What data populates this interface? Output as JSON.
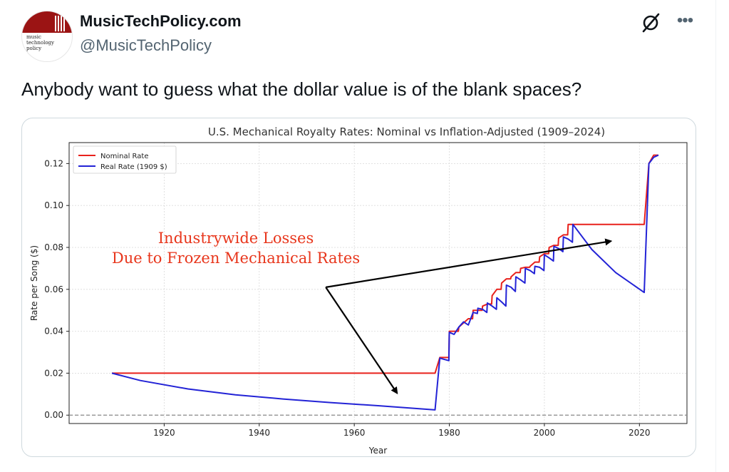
{
  "author": {
    "display_name": "MusicTechPolicy.com",
    "handle": "@MusicTechPolicy",
    "avatar_text": "music\ntechnology\npolicy"
  },
  "icons": {
    "grok": "grok-icon",
    "more": "more-icon"
  },
  "tweet": {
    "text": "Anybody want to guess what the dollar value is of the blank spaces?"
  },
  "chart_data": {
    "type": "line",
    "title": "U.S. Mechanical Royalty Rates: Nominal vs Inflation-Adjusted (1909–2024)",
    "xlabel": "Year",
    "ylabel": "Rate per Song ($)",
    "xlim": [
      1900,
      2030
    ],
    "ylim": [
      -0.004,
      0.13
    ],
    "xticks": [
      1920,
      1940,
      1960,
      1980,
      2000,
      2020
    ],
    "yticks": [
      0.0,
      0.02,
      0.04,
      0.06,
      0.08,
      0.1,
      0.12
    ],
    "ytick_labels": [
      "0.00",
      "0.02",
      "0.04",
      "0.06",
      "0.08",
      "0.10",
      "0.12"
    ],
    "grid": true,
    "legend_position": "top-left",
    "reference_line": {
      "y": 0,
      "style": "dashed",
      "color": "#888888"
    },
    "series": [
      {
        "name": "Nominal Rate",
        "color": "#e8211c",
        "x": [
          1909,
          1977,
          1978,
          1979.9,
          1980,
          1981,
          1981.9,
          1982,
          1983,
          1984,
          1984.9,
          1985,
          1986,
          1986.9,
          1987,
          1988,
          1988.9,
          1989,
          1990,
          1990.9,
          1991,
          1992,
          1992.9,
          1993,
          1994,
          1994.9,
          1995,
          1996,
          1996.9,
          1997,
          1998,
          1998.9,
          1999,
          2000,
          2000.9,
          2001,
          2002,
          2002.9,
          2003,
          2004,
          2004.9,
          2005,
          2006,
          2021,
          2022,
          2023,
          2024
        ],
        "y": [
          0.02,
          0.02,
          0.0275,
          0.0275,
          0.04,
          0.04,
          0.04,
          0.042,
          0.044,
          0.046,
          0.046,
          0.05,
          0.05,
          0.05,
          0.052,
          0.053,
          0.053,
          0.057,
          0.06,
          0.06,
          0.063,
          0.065,
          0.065,
          0.066,
          0.068,
          0.068,
          0.07,
          0.0705,
          0.0705,
          0.071,
          0.073,
          0.073,
          0.0755,
          0.077,
          0.077,
          0.08,
          0.081,
          0.081,
          0.0845,
          0.086,
          0.086,
          0.091,
          0.091,
          0.091,
          0.12,
          0.124,
          0.124
        ]
      },
      {
        "name": "Real Rate (1909 $)",
        "color": "#2323d6",
        "x": [
          1909,
          1915,
          1925,
          1935,
          1945,
          1955,
          1965,
          1977,
          1978,
          1979.9,
          1980,
          1981,
          1982,
          1983,
          1984,
          1985,
          1985.9,
          1986,
          1987,
          1987.9,
          1988,
          1989,
          1989.9,
          1990,
          1991,
          1991.9,
          1992,
          1993,
          1993.9,
          1994,
          1995,
          1995.9,
          1996,
          1997,
          1997.9,
          1998,
          1999,
          1999.9,
          2000,
          2001,
          2001.9,
          2002,
          2003,
          2003.9,
          2004,
          2005,
          2005.9,
          2006,
          2010,
          2015,
          2021,
          2022,
          2023,
          2024
        ],
        "y": [
          0.02,
          0.0165,
          0.0125,
          0.0097,
          0.0077,
          0.006,
          0.0045,
          0.0025,
          0.0272,
          0.026,
          0.0395,
          0.0385,
          0.042,
          0.0445,
          0.043,
          0.049,
          0.0485,
          0.051,
          0.0505,
          0.049,
          0.0535,
          0.052,
          0.0505,
          0.056,
          0.054,
          0.052,
          0.062,
          0.061,
          0.059,
          0.066,
          0.0645,
          0.063,
          0.07,
          0.069,
          0.0675,
          0.071,
          0.0705,
          0.069,
          0.0765,
          0.075,
          0.0735,
          0.0805,
          0.0795,
          0.078,
          0.085,
          0.084,
          0.0825,
          0.091,
          0.079,
          0.068,
          0.0585,
          0.12,
          0.123,
          0.124
        ]
      }
    ],
    "annotations": [
      {
        "text_line1": "Industrywide Losses",
        "text_line2": "Due to Frozen Mechanical Rates",
        "color": "#e8361c"
      }
    ],
    "arrows": [
      {
        "from": [
          1954,
          0.061
        ],
        "to": [
          1969,
          0.0105
        ]
      },
      {
        "from": [
          1954,
          0.061
        ],
        "to": [
          2014,
          0.083
        ]
      }
    ]
  }
}
